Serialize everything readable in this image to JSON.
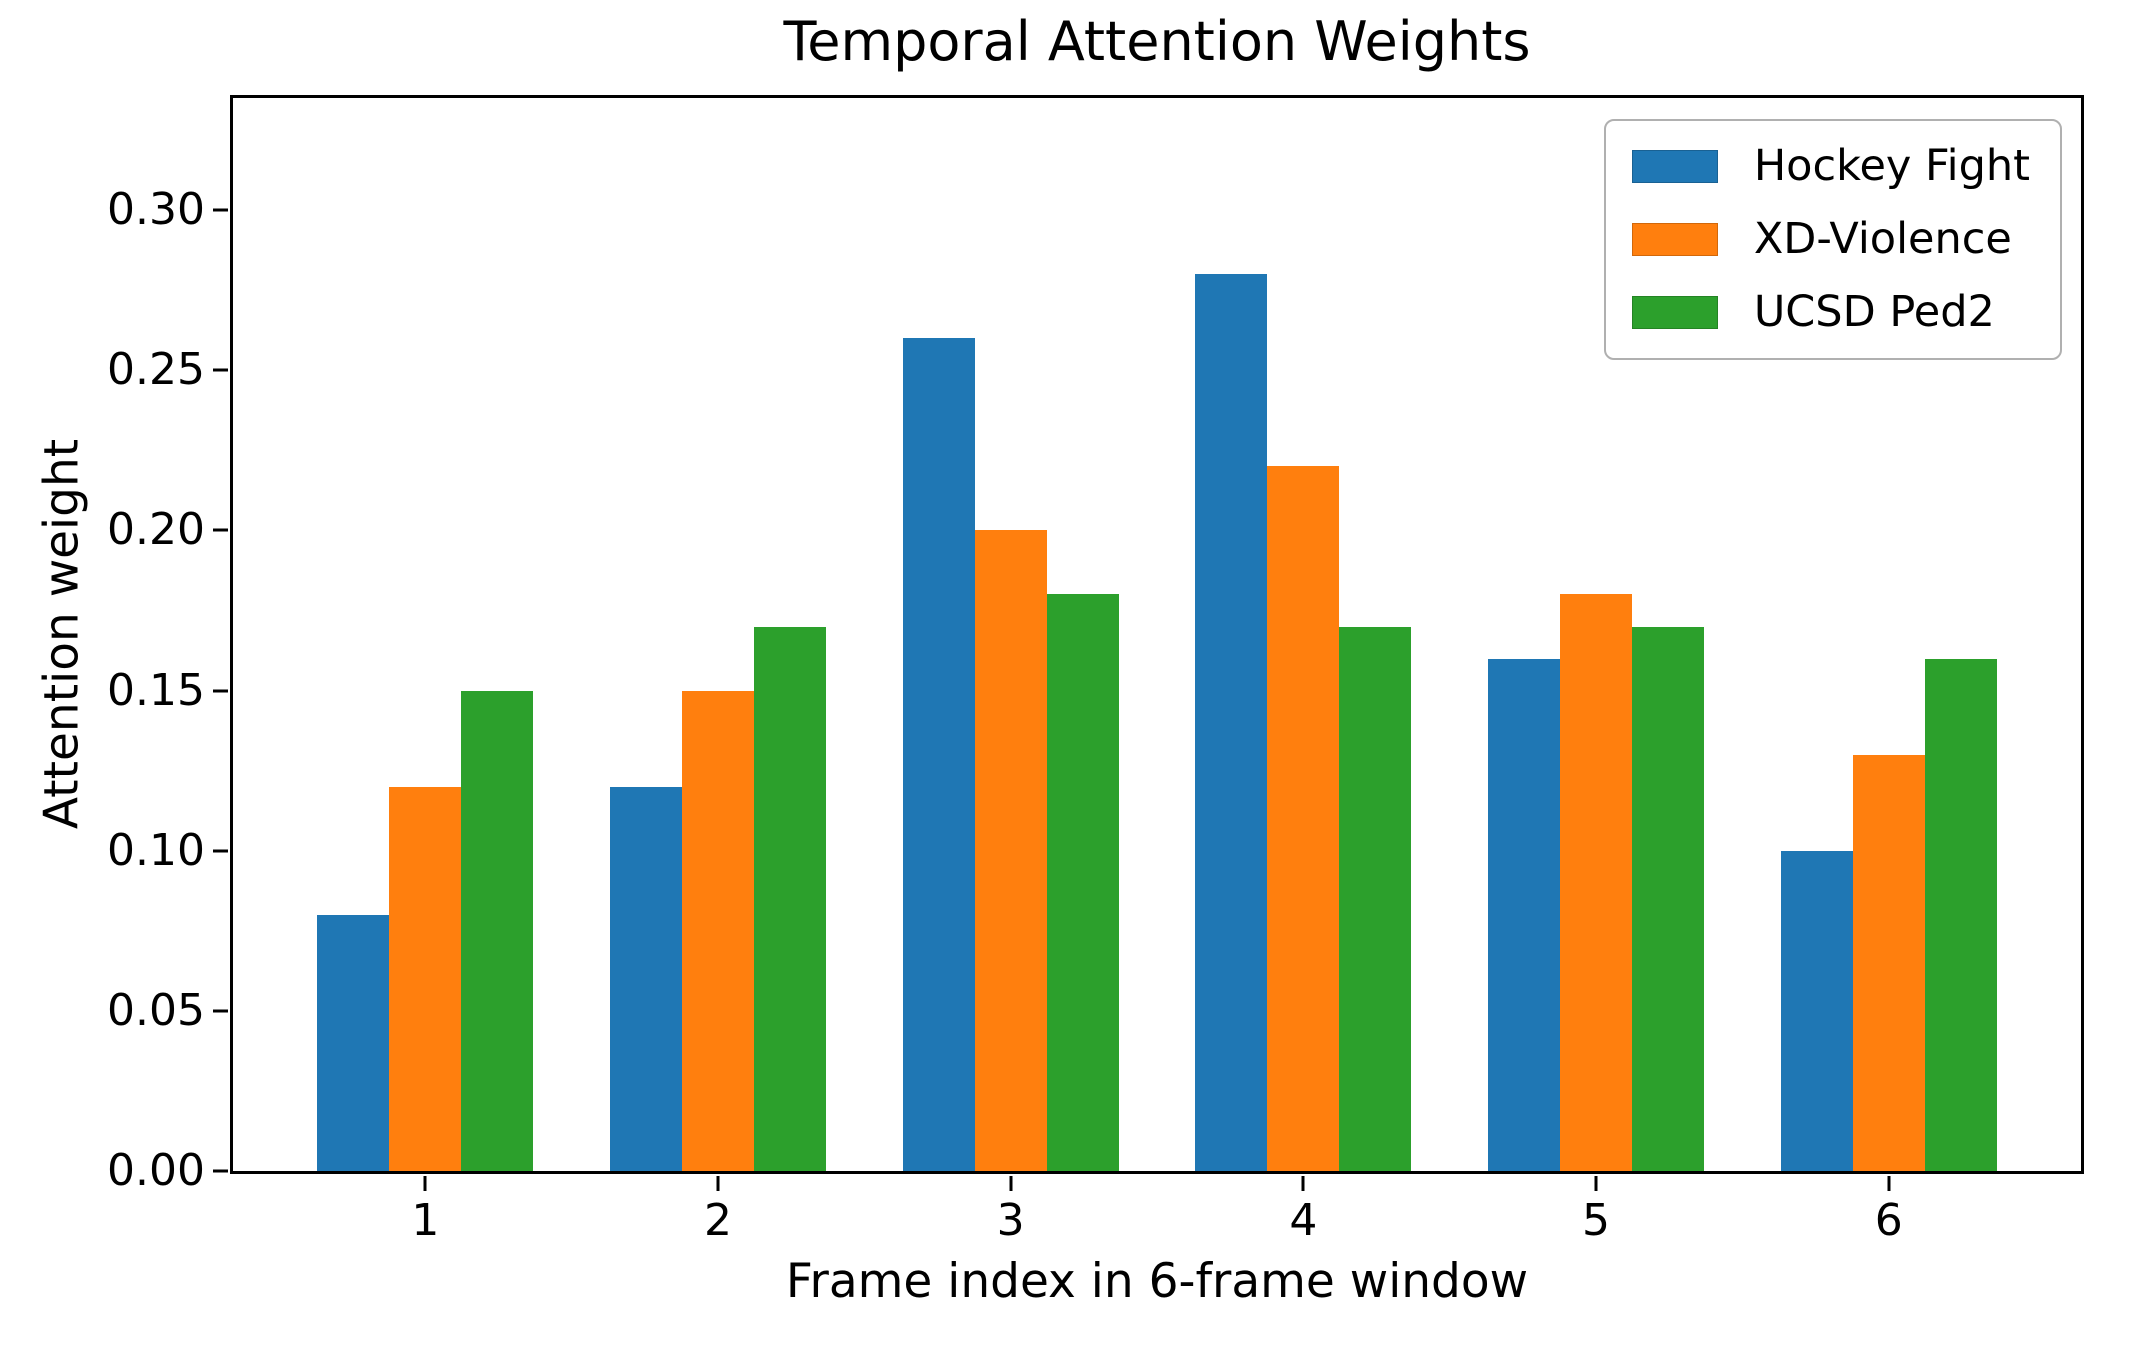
{
  "chart_data": {
    "type": "bar",
    "title": "Temporal Attention Weights",
    "xlabel": "Frame index in 6-frame window",
    "ylabel": "Attention weight",
    "categories": [
      "1",
      "2",
      "3",
      "4",
      "5",
      "6"
    ],
    "series": [
      {
        "name": "Hockey Fight",
        "color": "#1f77b4",
        "values": [
          0.08,
          0.12,
          0.26,
          0.28,
          0.16,
          0.1
        ]
      },
      {
        "name": "XD-Violence",
        "color": "#ff7f0e",
        "values": [
          0.12,
          0.15,
          0.2,
          0.22,
          0.18,
          0.13
        ]
      },
      {
        "name": "UCSD Ped2",
        "color": "#2ca02c",
        "values": [
          0.15,
          0.17,
          0.18,
          0.17,
          0.17,
          0.16
        ]
      }
    ],
    "ylim": [
      0,
      0.335
    ],
    "yticks": [
      0.0,
      0.05,
      0.1,
      0.15,
      0.2,
      0.25,
      0.3
    ],
    "ytick_labels": [
      "0.00",
      "0.05",
      "0.10",
      "0.15",
      "0.20",
      "0.25",
      "0.30"
    ],
    "legend_position": "upper right",
    "grid": false,
    "spine_color": "#000000",
    "background_color": "#ffffff"
  }
}
